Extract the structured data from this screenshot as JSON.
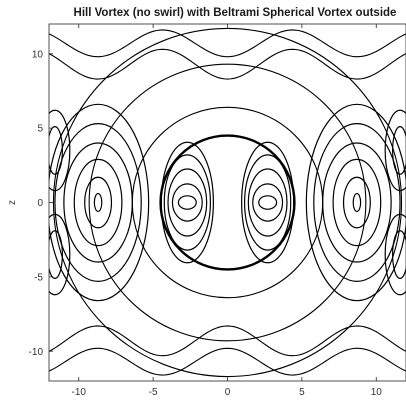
{
  "chart_data": {
    "type": "contour",
    "title": "Hill Vortex (no swirl) with Beltrami Spherical Vortex outside",
    "xlabel": "",
    "ylabel": "z",
    "xlim": [
      -12,
      12
    ],
    "ylim": [
      -12,
      12
    ],
    "xticks": [
      -10,
      -5,
      0,
      5,
      10
    ],
    "yticks": [
      -10,
      -5,
      0,
      5,
      10
    ],
    "xtick_labels": [
      "-10",
      "-5",
      "0",
      "5",
      "10"
    ],
    "ytick_labels": [
      "-10",
      "-5",
      "0",
      "5",
      "10"
    ],
    "sphere_radius": 4.5,
    "grid": false,
    "line_color": "#000000",
    "inner_cells": [
      {
        "center": [
          -2.7,
          0
        ],
        "levels": [
          [
            0.6,
            0.45
          ],
          [
            1.0,
            1.25
          ],
          [
            1.3,
            2.25
          ],
          [
            1.55,
            3.2
          ],
          [
            1.75,
            4.05
          ]
        ]
      },
      {
        "center": [
          2.7,
          0
        ],
        "levels": [
          [
            0.6,
            0.45
          ],
          [
            1.0,
            1.25
          ],
          [
            1.3,
            2.25
          ],
          [
            1.55,
            3.2
          ],
          [
            1.75,
            4.05
          ]
        ]
      }
    ],
    "outer_cells": [
      {
        "center": [
          -8.7,
          0
        ],
        "levels": [
          [
            0.25,
            0.6
          ],
          [
            0.9,
            1.7
          ],
          [
            1.6,
            2.9
          ],
          [
            2.3,
            4.0
          ],
          [
            2.9,
            5.3
          ],
          [
            3.4,
            6.6
          ]
        ]
      },
      {
        "center": [
          8.7,
          0
        ],
        "levels": [
          [
            0.25,
            0.6
          ],
          [
            0.9,
            1.7
          ],
          [
            1.6,
            2.9
          ],
          [
            2.3,
            4.0
          ],
          [
            2.9,
            5.3
          ],
          [
            3.4,
            6.6
          ]
        ]
      },
      {
        "center": [
          -11.6,
          3.5
        ],
        "levels": [
          [
            0.5,
            1.6
          ],
          [
            1.0,
            2.7
          ]
        ]
      },
      {
        "center": [
          -11.6,
          -3.5
        ],
        "levels": [
          [
            0.5,
            1.6
          ],
          [
            1.0,
            2.7
          ]
        ]
      },
      {
        "center": [
          11.6,
          3.5
        ],
        "levels": [
          [
            0.5,
            1.6
          ],
          [
            1.0,
            2.7
          ]
        ]
      },
      {
        "center": [
          11.6,
          -3.5
        ],
        "levels": [
          [
            0.5,
            1.6
          ],
          [
            1.0,
            2.7
          ]
        ]
      }
    ],
    "outer_circles": [
      6.4,
      9.3,
      11.7
    ],
    "wave_lines": [
      {
        "y0": 9.3,
        "amp": 1.0,
        "kx": 0.36
      },
      {
        "y0": 10.7,
        "amp": 0.9,
        "kx": 0.36
      },
      {
        "y0": -9.3,
        "amp": -1.0,
        "kx": 0.36
      },
      {
        "y0": -10.7,
        "amp": -0.9,
        "kx": 0.36
      }
    ]
  }
}
